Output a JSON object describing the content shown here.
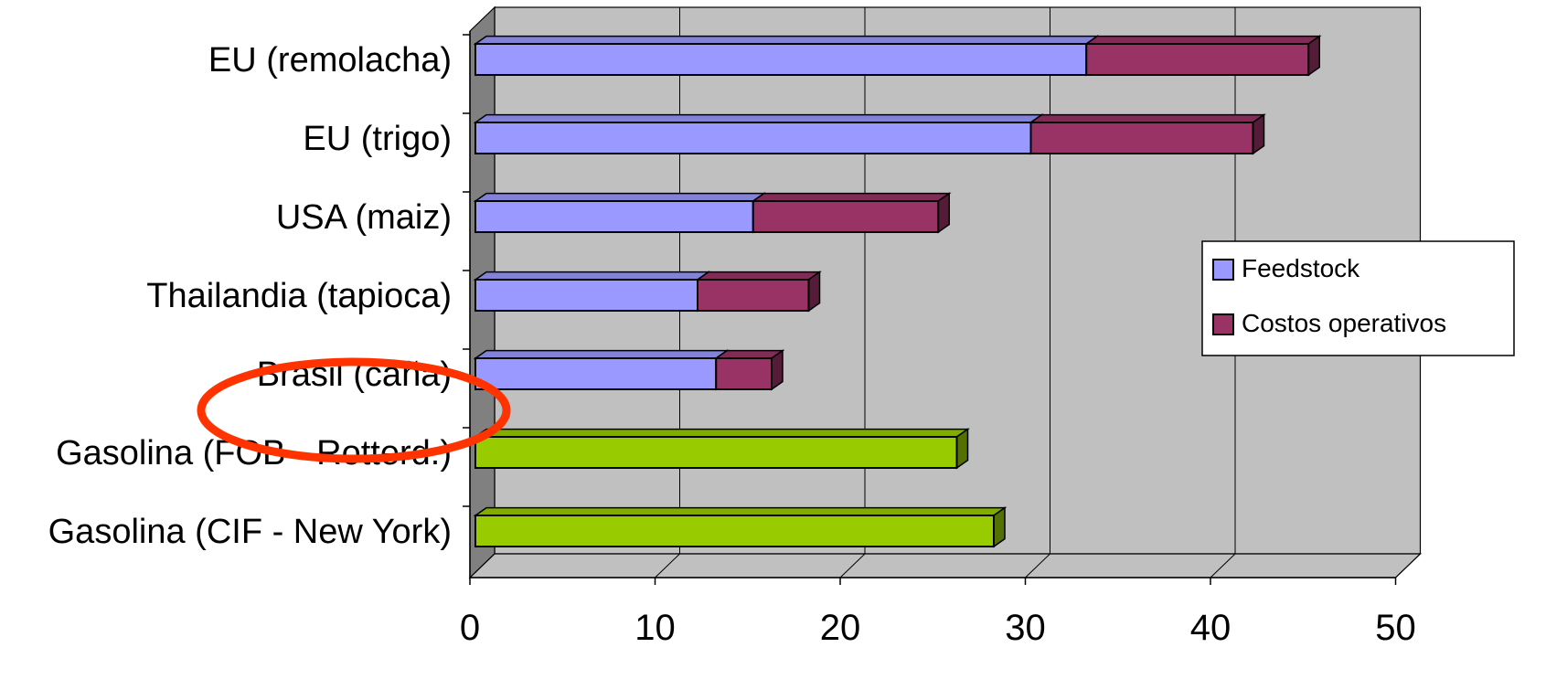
{
  "chart_data": {
    "type": "bar",
    "orientation": "horizontal",
    "stacked": true,
    "three_d": true,
    "categories": [
      "EU (remolacha) ",
      "EU (trigo)",
      "USA (maiz)",
      "Thailandia (tapioca)",
      "Brasil (caña)",
      "Gasolina (FOB - Rotterd.)",
      "Gasolina (CIF - New York)"
    ],
    "series": [
      {
        "name": "Feedstock",
        "color": "#9999ff",
        "values": [
          33,
          30,
          15,
          12,
          13,
          null,
          null
        ]
      },
      {
        "name": "Costos operativos",
        "color": "#993366",
        "values": [
          12,
          12,
          10,
          6,
          3,
          null,
          null
        ]
      },
      {
        "name": "",
        "color": "#99cc00",
        "values": [
          null,
          null,
          null,
          null,
          null,
          26,
          28
        ]
      }
    ],
    "xlim": [
      0,
      50
    ],
    "x_ticks": [
      "0",
      "10",
      "20",
      "30",
      "40",
      "50"
    ],
    "grid": true,
    "plot_background": "#c0c0c0",
    "legend_position": "right",
    "highlight": {
      "category": "Brasil (caña)",
      "shape": "ellipse",
      "color": "#ff3300"
    }
  }
}
